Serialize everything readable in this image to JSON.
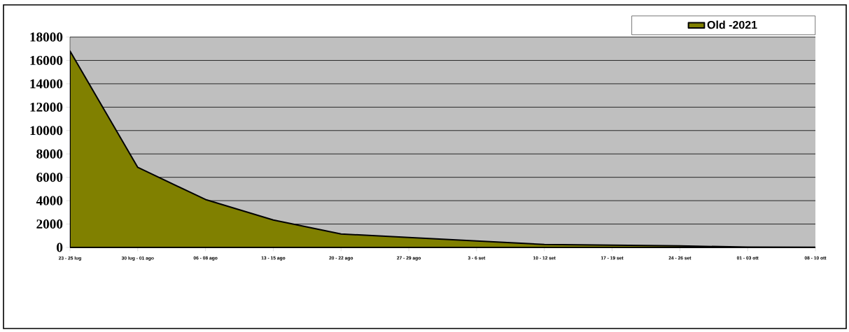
{
  "chart_data": {
    "type": "area",
    "categories": [
      "23 - 25 lug",
      "30 lug - 01 ago",
      "06 - 08 ago",
      "13 - 15 ago",
      "20 - 22 ago",
      "27 - 29 ago",
      "3 - 6 set",
      "10 - 12 set",
      "17 - 19 set",
      "24 - 26 set",
      "01 - 03 ott",
      "08 - 10 ott"
    ],
    "series": [
      {
        "name": "Old -2021",
        "color": "#808000",
        "values": [
          16800,
          6850,
          4100,
          2350,
          1150,
          850,
          560,
          250,
          200,
          130,
          30,
          10
        ]
      }
    ],
    "ylim": [
      0,
      18000
    ],
    "yticks": [
      0,
      2000,
      4000,
      6000,
      8000,
      10000,
      12000,
      14000,
      16000,
      18000
    ],
    "grid": "y",
    "legend": "top right"
  }
}
